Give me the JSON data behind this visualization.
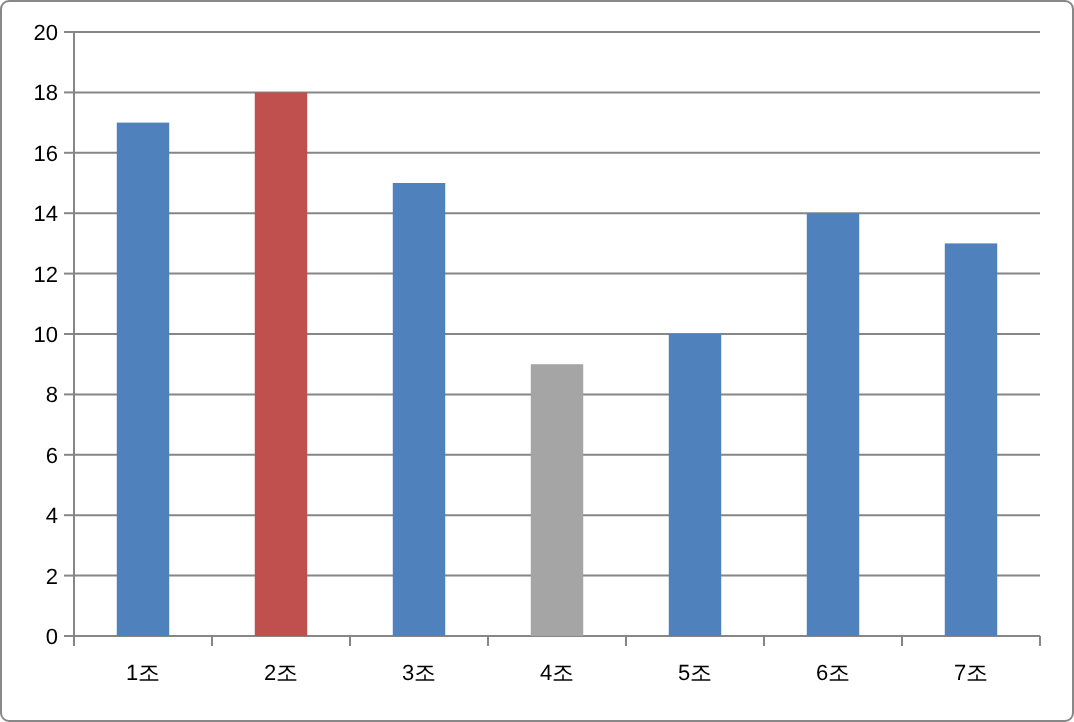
{
  "chart_data": {
    "type": "bar",
    "categories": [
      "1조",
      "2조",
      "3조",
      "4조",
      "5조",
      "6조",
      "7조"
    ],
    "values": [
      17,
      18,
      15,
      9,
      10,
      14,
      13
    ],
    "colors": [
      "#4f81bd",
      "#c0504d",
      "#4f81bd",
      "#a5a5a5",
      "#4f81bd",
      "#4f81bd",
      "#4f81bd"
    ],
    "ylim": [
      0,
      20
    ],
    "yticks": [
      0,
      2,
      4,
      6,
      8,
      10,
      12,
      14,
      16,
      18,
      20
    ],
    "grid": "y"
  }
}
